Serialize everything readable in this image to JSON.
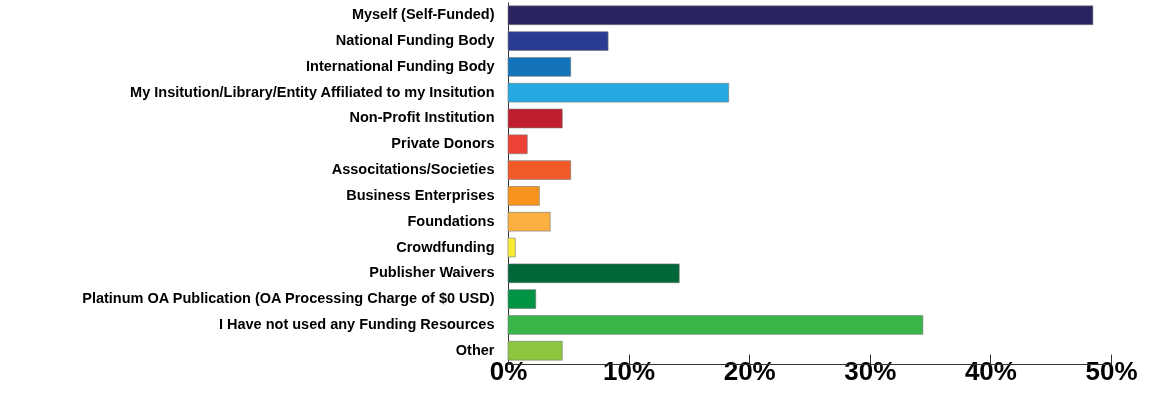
{
  "chart_data": {
    "type": "bar",
    "orientation": "horizontal",
    "categories": [
      "Myself (Self-Funded)",
      "National Funding Body",
      "International Funding Body",
      "My Insitution/Library/Entity Affiliated to my Insitution",
      "Non-Profit Institution",
      "Private Donors",
      "Associtations/Societies",
      "Business Enterprises",
      "Foundations",
      "Crowdfunding",
      "Publisher Waivers",
      "Platinum OA Publication (OA Processing Charge of $0 USD)",
      "I Have not used any Funding Resources",
      "Other"
    ],
    "values": [
      48.5,
      8.3,
      5.2,
      18.3,
      4.5,
      1.6,
      5.2,
      2.6,
      3.5,
      0.6,
      14.2,
      2.3,
      34.4,
      4.5
    ],
    "colors": [
      "#29245f",
      "#2a3b93",
      "#1474bb",
      "#24a9e1",
      "#be1e2d",
      "#ef4136",
      "#f15a29",
      "#f7941d",
      "#fbb040",
      "#f9ed32",
      "#006838",
      "#009444",
      "#39b54a",
      "#8dc63f"
    ],
    "xlim": [
      0,
      50
    ],
    "xticks": [
      {
        "value": 0,
        "label": "0%"
      },
      {
        "value": 10,
        "label": "10%"
      },
      {
        "value": 20,
        "label": "20%"
      },
      {
        "value": 30,
        "label": "30%"
      },
      {
        "value": 40,
        "label": "40%"
      },
      {
        "value": 50,
        "label": "50%"
      }
    ],
    "grid": false
  }
}
